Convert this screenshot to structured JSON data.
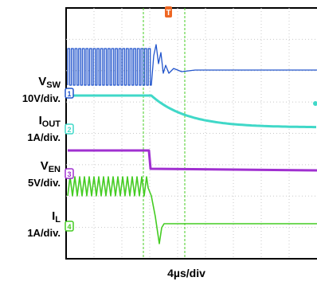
{
  "chart_data": {
    "type": "line",
    "title": "",
    "xlabel": "4µs/div",
    "time_per_div_us": 4,
    "grid": true,
    "trigger_marker": "T",
    "channels": [
      {
        "id": 1,
        "badge": "1",
        "name": "VSW",
        "name_main": "V",
        "name_sub": "SW",
        "scale": "10V/div.",
        "color": "#2255cc",
        "description": "switching waveform before event, steady level after"
      },
      {
        "id": 2,
        "badge": "2",
        "name": "IOUT",
        "name_main": "I",
        "name_sub": "OUT",
        "scale": "1A/div.",
        "color": "#40d8c8",
        "description": "flat, then decays after event"
      },
      {
        "id": 3,
        "badge": "3",
        "name": "VEN",
        "name_main": "V",
        "name_sub": "EN",
        "scale": "5V/div.",
        "color": "#a030d0",
        "description": "high, steps low at event"
      },
      {
        "id": 4,
        "badge": "4",
        "name": "IL",
        "name_main": "I",
        "name_sub": "L",
        "scale": "1A/div.",
        "color": "#44cc22",
        "description": "triangular ripple, then dips and settles flat"
      }
    ]
  }
}
